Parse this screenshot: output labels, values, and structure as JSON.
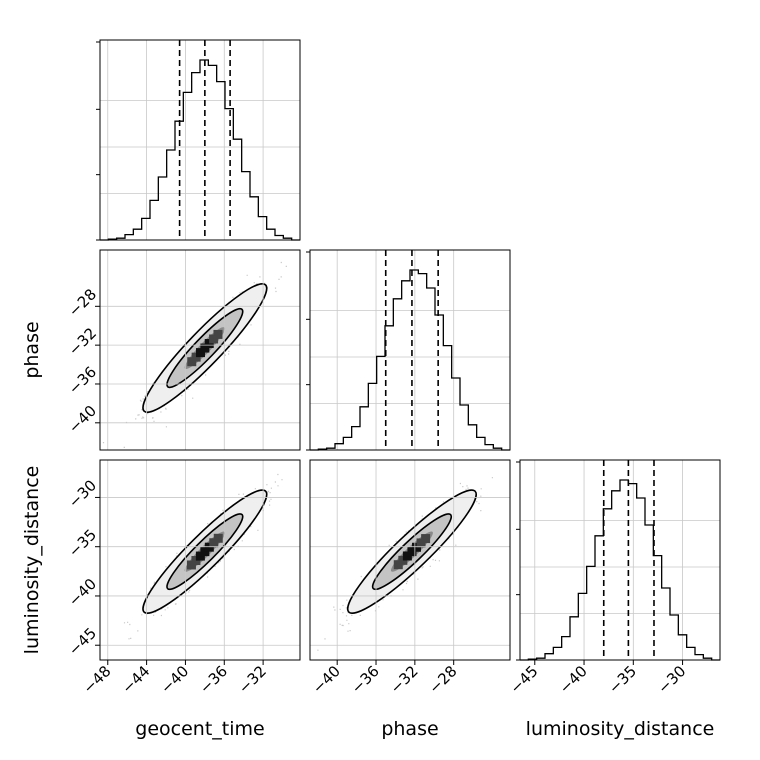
{
  "chart_data": {
    "type": "corner",
    "parameters": [
      "geocent_time",
      "phase",
      "luminosity_distance"
    ],
    "ranges": {
      "geocent_time": [
        -48.8,
        -28.2
      ],
      "phase": [
        -42.8,
        -22.2
      ],
      "luminosity_distance": [
        -46.5,
        -26.2
      ]
    },
    "ticks": {
      "geocent_time": [
        -48,
        -44,
        -40,
        -36,
        -32
      ],
      "phase": [
        -40,
        -36,
        -32,
        -28
      ],
      "luminosity_distance": [
        -45,
        -40,
        -35,
        -30
      ]
    },
    "tick_labels": {
      "geocent_time": [
        "−48",
        "−44",
        "−40",
        "−36",
        "−32"
      ],
      "phase": [
        "−40",
        "−36",
        "−32",
        "−28"
      ],
      "luminosity_distance": [
        "−45",
        "−40",
        "−35",
        "−30"
      ]
    },
    "quantiles": {
      "geocent_time": [
        -40.6,
        -38.0,
        -35.4
      ],
      "phase": [
        -35.0,
        -32.3,
        -29.6
      ],
      "luminosity_distance": [
        -38.0,
        -35.5,
        -32.9
      ]
    },
    "histograms": {
      "geocent_time": [
        0,
        0.005,
        0.01,
        0.03,
        0.06,
        0.12,
        0.22,
        0.35,
        0.5,
        0.66,
        0.82,
        0.93,
        1.0,
        0.97,
        0.88,
        0.73,
        0.56,
        0.38,
        0.24,
        0.13,
        0.06,
        0.025,
        0.01,
        0
      ],
      "phase": [
        0,
        0.005,
        0.01,
        0.035,
        0.07,
        0.13,
        0.24,
        0.37,
        0.52,
        0.69,
        0.84,
        0.94,
        1.0,
        0.98,
        0.9,
        0.75,
        0.58,
        0.4,
        0.25,
        0.14,
        0.07,
        0.03,
        0.01,
        0
      ],
      "luminosity_distance": [
        0,
        0.005,
        0.01,
        0.035,
        0.07,
        0.13,
        0.24,
        0.37,
        0.52,
        0.69,
        0.84,
        0.94,
        1.0,
        0.98,
        0.9,
        0.75,
        0.58,
        0.4,
        0.25,
        0.14,
        0.07,
        0.03,
        0.01,
        0
      ]
    },
    "grid": true,
    "colors": {
      "line": "#000000",
      "scatter": "#9a9a9a",
      "grid": "#c8c8c8"
    }
  }
}
